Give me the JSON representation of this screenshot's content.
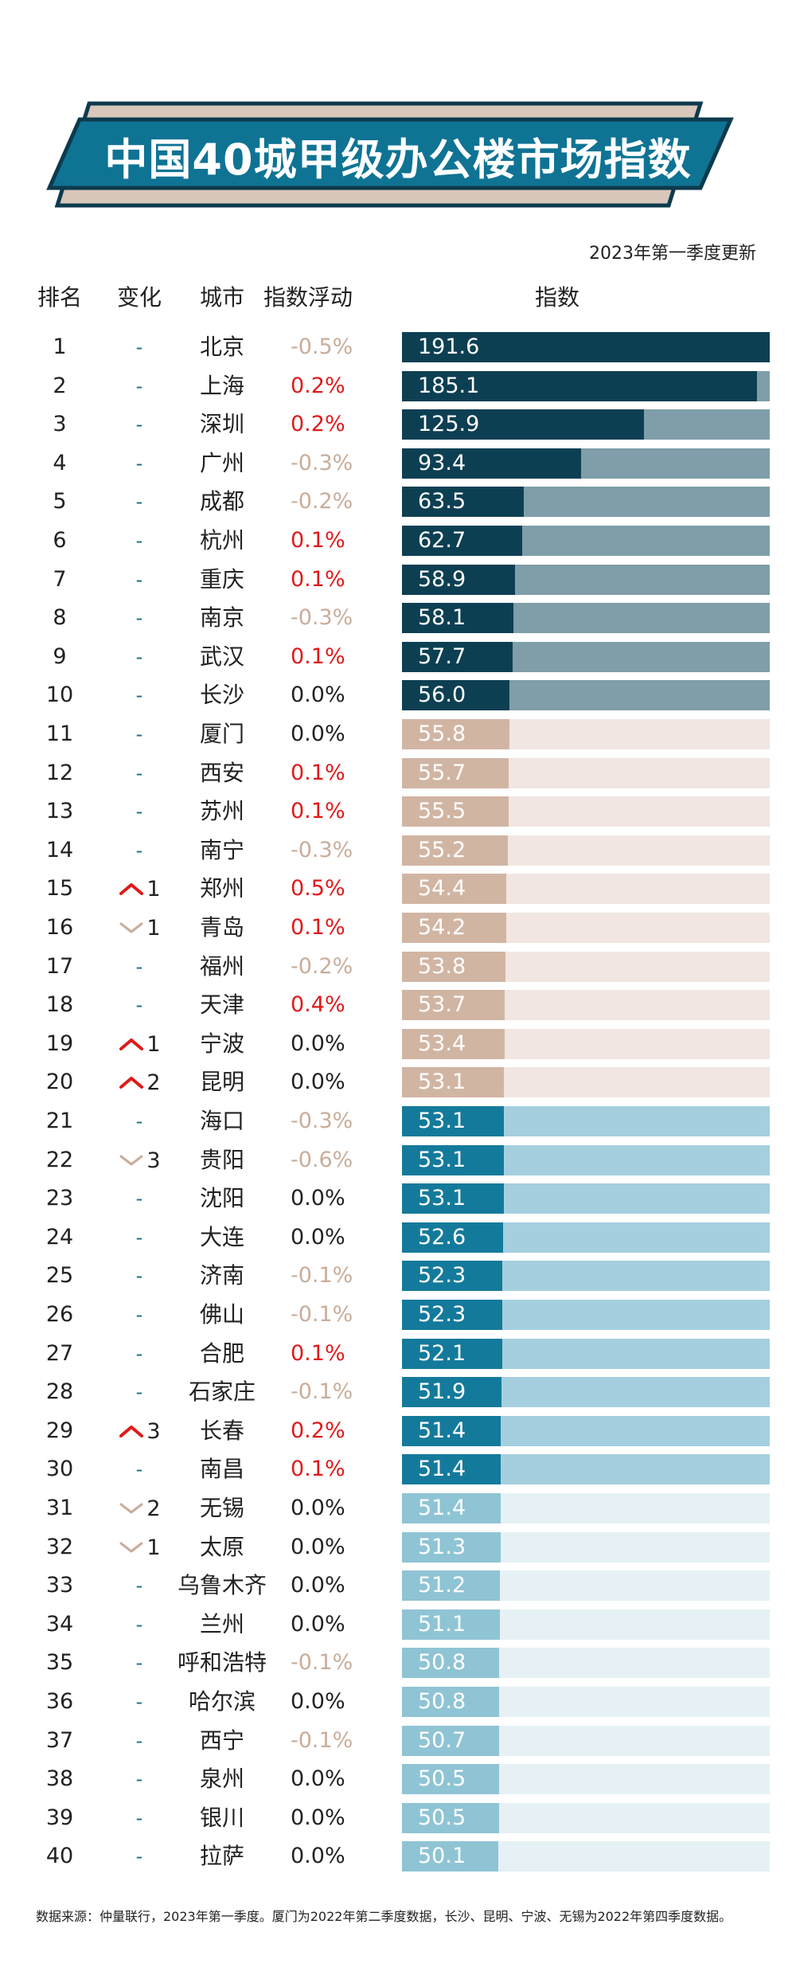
{
  "title": "中国40城甲级办公楼市场指数",
  "update_note": "2023年第一季度更新",
  "headers": {
    "rank": "排名",
    "change": "变化",
    "city": "城市",
    "fluct": "指数浮动",
    "index": "指数"
  },
  "footnote": "数据来源：仲量联行，2023年第一季度。厦门为2022年第二季度数据，长沙、昆明、宁波、无锡为2022年第四季度数据。",
  "colors": {
    "banner_main": "#0f7394",
    "banner_back": "#d8c7ba",
    "banner_outline": "#0d3a4d",
    "tier1_fill": "#0d3f53",
    "tier1_track": "#7f9ea9",
    "tier2_fill": "#d1b5a3",
    "tier2_track": "#f1e6e1",
    "tier3_fill": "#147a9b",
    "tier3_track": "#a5cfde",
    "tier4_fill": "#8fc4d4",
    "tier4_track": "#e5f1f5",
    "positive": "#e01a1a",
    "negative": "#c9ad9a",
    "arrow_up": "#e01a1a",
    "arrow_down": "#c9ad9a"
  },
  "chart_data": {
    "type": "bar",
    "title": "中国40城甲级办公楼市场指数",
    "subtitle": "2023年第一季度更新",
    "value_label": "指数",
    "xlim": [
      0,
      191.6
    ],
    "legend": "none",
    "grid": false,
    "rows": [
      {
        "rank": "1",
        "change_dir": "none",
        "change_label": "-",
        "change_num": "",
        "city": "北京",
        "fluct": "-0.5%",
        "fluct_dir": "neg",
        "value": 191.6,
        "value_label": "191.6",
        "tier": 1
      },
      {
        "rank": "2",
        "change_dir": "none",
        "change_label": "-",
        "change_num": "",
        "city": "上海",
        "fluct": "0.2%",
        "fluct_dir": "pos",
        "value": 185.1,
        "value_label": "185.1",
        "tier": 1
      },
      {
        "rank": "3",
        "change_dir": "none",
        "change_label": "-",
        "change_num": "",
        "city": "深圳",
        "fluct": "0.2%",
        "fluct_dir": "pos",
        "value": 125.9,
        "value_label": "125.9",
        "tier": 1
      },
      {
        "rank": "4",
        "change_dir": "none",
        "change_label": "-",
        "change_num": "",
        "city": "广州",
        "fluct": "-0.3%",
        "fluct_dir": "neg",
        "value": 93.4,
        "value_label": "93.4",
        "tier": 1
      },
      {
        "rank": "5",
        "change_dir": "none",
        "change_label": "-",
        "change_num": "",
        "city": "成都",
        "fluct": "-0.2%",
        "fluct_dir": "neg",
        "value": 63.5,
        "value_label": "63.5",
        "tier": 1
      },
      {
        "rank": "6",
        "change_dir": "none",
        "change_label": "-",
        "change_num": "",
        "city": "杭州",
        "fluct": "0.1%",
        "fluct_dir": "pos",
        "value": 62.7,
        "value_label": "62.7",
        "tier": 1
      },
      {
        "rank": "7",
        "change_dir": "none",
        "change_label": "-",
        "change_num": "",
        "city": "重庆",
        "fluct": "0.1%",
        "fluct_dir": "pos",
        "value": 58.9,
        "value_label": "58.9",
        "tier": 1
      },
      {
        "rank": "8",
        "change_dir": "none",
        "change_label": "-",
        "change_num": "",
        "city": "南京",
        "fluct": "-0.3%",
        "fluct_dir": "neg",
        "value": 58.1,
        "value_label": "58.1",
        "tier": 1
      },
      {
        "rank": "9",
        "change_dir": "none",
        "change_label": "-",
        "change_num": "",
        "city": "武汉",
        "fluct": "0.1%",
        "fluct_dir": "pos",
        "value": 57.7,
        "value_label": "57.7",
        "tier": 1
      },
      {
        "rank": "10",
        "change_dir": "none",
        "change_label": "-",
        "change_num": "",
        "city": "长沙",
        "fluct": "0.0%",
        "fluct_dir": "zero",
        "value": 56.0,
        "value_label": "56.0",
        "tier": 1
      },
      {
        "rank": "11",
        "change_dir": "none",
        "change_label": "-",
        "change_num": "",
        "city": "厦门",
        "fluct": "0.0%",
        "fluct_dir": "zero",
        "value": 55.8,
        "value_label": "55.8",
        "tier": 2
      },
      {
        "rank": "12",
        "change_dir": "none",
        "change_label": "-",
        "change_num": "",
        "city": "西安",
        "fluct": "0.1%",
        "fluct_dir": "pos",
        "value": 55.7,
        "value_label": "55.7",
        "tier": 2
      },
      {
        "rank": "13",
        "change_dir": "none",
        "change_label": "-",
        "change_num": "",
        "city": "苏州",
        "fluct": "0.1%",
        "fluct_dir": "pos",
        "value": 55.5,
        "value_label": "55.5",
        "tier": 2
      },
      {
        "rank": "14",
        "change_dir": "none",
        "change_label": "-",
        "change_num": "",
        "city": "南宁",
        "fluct": "-0.3%",
        "fluct_dir": "neg",
        "value": 55.2,
        "value_label": "55.2",
        "tier": 2
      },
      {
        "rank": "15",
        "change_dir": "up",
        "change_label": "",
        "change_num": "1",
        "city": "郑州",
        "fluct": "0.5%",
        "fluct_dir": "pos",
        "value": 54.4,
        "value_label": "54.4",
        "tier": 2
      },
      {
        "rank": "16",
        "change_dir": "down",
        "change_label": "",
        "change_num": "1",
        "city": "青岛",
        "fluct": "0.1%",
        "fluct_dir": "pos",
        "value": 54.2,
        "value_label": "54.2",
        "tier": 2
      },
      {
        "rank": "17",
        "change_dir": "none",
        "change_label": "-",
        "change_num": "",
        "city": "福州",
        "fluct": "-0.2%",
        "fluct_dir": "neg",
        "value": 53.8,
        "value_label": "53.8",
        "tier": 2
      },
      {
        "rank": "18",
        "change_dir": "none",
        "change_label": "-",
        "change_num": "",
        "city": "天津",
        "fluct": "0.4%",
        "fluct_dir": "pos",
        "value": 53.7,
        "value_label": "53.7",
        "tier": 2
      },
      {
        "rank": "19",
        "change_dir": "up",
        "change_label": "",
        "change_num": "1",
        "city": "宁波",
        "fluct": "0.0%",
        "fluct_dir": "zero",
        "value": 53.4,
        "value_label": "53.4",
        "tier": 2
      },
      {
        "rank": "20",
        "change_dir": "up",
        "change_label": "",
        "change_num": "2",
        "city": "昆明",
        "fluct": "0.0%",
        "fluct_dir": "zero",
        "value": 53.1,
        "value_label": "53.1",
        "tier": 2
      },
      {
        "rank": "21",
        "change_dir": "none",
        "change_label": "-",
        "change_num": "",
        "city": "海口",
        "fluct": "-0.3%",
        "fluct_dir": "neg",
        "value": 53.1,
        "value_label": "53.1",
        "tier": 3
      },
      {
        "rank": "22",
        "change_dir": "down",
        "change_label": "",
        "change_num": "3",
        "city": "贵阳",
        "fluct": "-0.6%",
        "fluct_dir": "neg",
        "value": 53.1,
        "value_label": "53.1",
        "tier": 3
      },
      {
        "rank": "23",
        "change_dir": "none",
        "change_label": "-",
        "change_num": "",
        "city": "沈阳",
        "fluct": "0.0%",
        "fluct_dir": "zero",
        "value": 53.1,
        "value_label": "53.1",
        "tier": 3
      },
      {
        "rank": "24",
        "change_dir": "none",
        "change_label": "-",
        "change_num": "",
        "city": "大连",
        "fluct": "0.0%",
        "fluct_dir": "zero",
        "value": 52.6,
        "value_label": "52.6",
        "tier": 3
      },
      {
        "rank": "25",
        "change_dir": "none",
        "change_label": "-",
        "change_num": "",
        "city": "济南",
        "fluct": "-0.1%",
        "fluct_dir": "neg",
        "value": 52.3,
        "value_label": "52.3",
        "tier": 3
      },
      {
        "rank": "26",
        "change_dir": "none",
        "change_label": "-",
        "change_num": "",
        "city": "佛山",
        "fluct": "-0.1%",
        "fluct_dir": "neg",
        "value": 52.3,
        "value_label": "52.3",
        "tier": 3
      },
      {
        "rank": "27",
        "change_dir": "none",
        "change_label": "-",
        "change_num": "",
        "city": "合肥",
        "fluct": "0.1%",
        "fluct_dir": "pos",
        "value": 52.1,
        "value_label": "52.1",
        "tier": 3
      },
      {
        "rank": "28",
        "change_dir": "none",
        "change_label": "-",
        "change_num": "",
        "city": "石家庄",
        "fluct": "-0.1%",
        "fluct_dir": "neg",
        "value": 51.9,
        "value_label": "51.9",
        "tier": 3
      },
      {
        "rank": "29",
        "change_dir": "up",
        "change_label": "",
        "change_num": "3",
        "city": "长春",
        "fluct": "0.2%",
        "fluct_dir": "pos",
        "value": 51.4,
        "value_label": "51.4",
        "tier": 3
      },
      {
        "rank": "30",
        "change_dir": "none",
        "change_label": "-",
        "change_num": "",
        "city": "南昌",
        "fluct": "0.1%",
        "fluct_dir": "pos",
        "value": 51.4,
        "value_label": "51.4",
        "tier": 3
      },
      {
        "rank": "31",
        "change_dir": "down",
        "change_label": "",
        "change_num": "2",
        "city": "无锡",
        "fluct": "0.0%",
        "fluct_dir": "zero",
        "value": 51.4,
        "value_label": "51.4",
        "tier": 4
      },
      {
        "rank": "32",
        "change_dir": "down",
        "change_label": "",
        "change_num": "1",
        "city": "太原",
        "fluct": "0.0%",
        "fluct_dir": "zero",
        "value": 51.3,
        "value_label": "51.3",
        "tier": 4
      },
      {
        "rank": "33",
        "change_dir": "none",
        "change_label": "-",
        "change_num": "",
        "city": "乌鲁木齐",
        "fluct": "0.0%",
        "fluct_dir": "zero",
        "value": 51.2,
        "value_label": "51.2",
        "tier": 4
      },
      {
        "rank": "34",
        "change_dir": "none",
        "change_label": "-",
        "change_num": "",
        "city": "兰州",
        "fluct": "0.0%",
        "fluct_dir": "zero",
        "value": 51.1,
        "value_label": "51.1",
        "tier": 4
      },
      {
        "rank": "35",
        "change_dir": "none",
        "change_label": "-",
        "change_num": "",
        "city": "呼和浩特",
        "fluct": "-0.1%",
        "fluct_dir": "neg",
        "value": 50.8,
        "value_label": "50.8",
        "tier": 4
      },
      {
        "rank": "36",
        "change_dir": "none",
        "change_label": "-",
        "change_num": "",
        "city": "哈尔滨",
        "fluct": "0.0%",
        "fluct_dir": "zero",
        "value": 50.8,
        "value_label": "50.8",
        "tier": 4
      },
      {
        "rank": "37",
        "change_dir": "none",
        "change_label": "-",
        "change_num": "",
        "city": "西宁",
        "fluct": "-0.1%",
        "fluct_dir": "neg",
        "value": 50.7,
        "value_label": "50.7",
        "tier": 4
      },
      {
        "rank": "38",
        "change_dir": "none",
        "change_label": "-",
        "change_num": "",
        "city": "泉州",
        "fluct": "0.0%",
        "fluct_dir": "zero",
        "value": 50.5,
        "value_label": "50.5",
        "tier": 4
      },
      {
        "rank": "39",
        "change_dir": "none",
        "change_label": "-",
        "change_num": "",
        "city": "银川",
        "fluct": "0.0%",
        "fluct_dir": "zero",
        "value": 50.5,
        "value_label": "50.5",
        "tier": 4
      },
      {
        "rank": "40",
        "change_dir": "none",
        "change_label": "-",
        "change_num": "",
        "city": "拉萨",
        "fluct": "0.0%",
        "fluct_dir": "zero",
        "value": 50.1,
        "value_label": "50.1",
        "tier": 4
      }
    ]
  }
}
